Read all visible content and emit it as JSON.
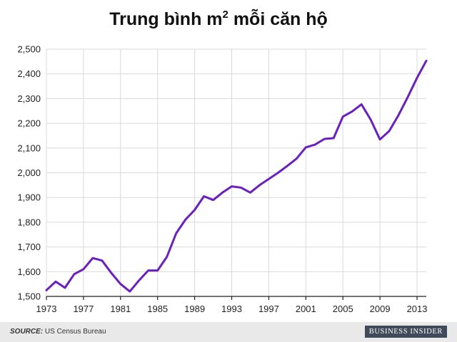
{
  "chart_data": {
    "type": "line",
    "title": "Trung bình m",
    "title_superscript": "2",
    "title_suffix": " mỗi căn hộ",
    "xlabel": "",
    "ylabel": "",
    "grid": true,
    "legend": "none",
    "line_color": "#6a1fbf",
    "xlim": [
      1973,
      2014
    ],
    "ylim": [
      1500,
      2500
    ],
    "x_ticks": [
      1973,
      1977,
      1981,
      1985,
      1989,
      1993,
      1997,
      2001,
      2005,
      2009,
      2013
    ],
    "y_ticks": [
      "1,500",
      "1,600",
      "1,700",
      "1,800",
      "1,900",
      "2,000",
      "2,100",
      "2,200",
      "2,300",
      "2,400",
      "2,500"
    ],
    "series": [
      {
        "x": [
          1973,
          1974,
          1975,
          1976,
          1977,
          1978,
          1979,
          1980,
          1981,
          1982,
          1983,
          1984,
          1985,
          1986,
          1987,
          1988,
          1989,
          1990,
          1991,
          1992,
          1993,
          1994,
          1995,
          1996,
          1997,
          1998,
          1999,
          2000,
          2001,
          2002,
          2003,
          2004,
          2005,
          2006,
          2007,
          2008,
          2009,
          2010,
          2011,
          2012,
          2013,
          2014
        ],
        "values": [
          1525,
          1560,
          1535,
          1590,
          1610,
          1655,
          1645,
          1595,
          1550,
          1520,
          1565,
          1605,
          1605,
          1660,
          1755,
          1810,
          1850,
          1905,
          1890,
          1920,
          1945,
          1940,
          1920,
          1950,
          1975,
          2000,
          2028,
          2057,
          2103,
          2114,
          2137,
          2140,
          2227,
          2248,
          2277,
          2215,
          2135,
          2169,
          2233,
          2306,
          2384,
          2453
        ]
      }
    ]
  },
  "footer": {
    "source_label": "SOURCE:",
    "source_text": " US Census Bureau",
    "brand": "BUSINESS INSIDER"
  }
}
